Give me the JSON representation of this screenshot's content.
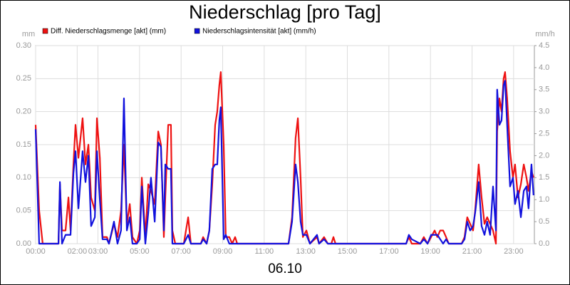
{
  "chart_data": {
    "type": "line",
    "title": "Niederschlag [pro Tag]",
    "xlabel": "06.10",
    "ylabel": "mm",
    "y2label": "mm/h",
    "grid": true,
    "legend": "top-left",
    "xlim": [
      0,
      24
    ],
    "xticks": [
      {
        "value": 0,
        "label": "00:00"
      },
      {
        "value": 2,
        "label": "02:00"
      },
      {
        "value": 3,
        "label": "03:00"
      },
      {
        "value": 5,
        "label": "05:00"
      },
      {
        "value": 7,
        "label": "07:00"
      },
      {
        "value": 9,
        "label": "09:00"
      },
      {
        "value": 11,
        "label": "11:00"
      },
      {
        "value": 13,
        "label": "13:00"
      },
      {
        "value": 15,
        "label": "15:00"
      },
      {
        "value": 17,
        "label": "17:00"
      },
      {
        "value": 19,
        "label": "19:00"
      },
      {
        "value": 21,
        "label": "21:00"
      },
      {
        "value": 23,
        "label": "23:00"
      }
    ],
    "ylim": [
      0,
      0.3
    ],
    "yticks": [
      {
        "value": 0,
        "label": "0.00"
      },
      {
        "value": 0.05,
        "label": "0.05"
      },
      {
        "value": 0.1,
        "label": "0.10"
      },
      {
        "value": 0.15,
        "label": "0.15"
      },
      {
        "value": 0.2,
        "label": "0.20"
      },
      {
        "value": 0.25,
        "label": "0.25"
      },
      {
        "value": 0.3,
        "label": "0.30"
      }
    ],
    "y2lim": [
      0,
      4.5
    ],
    "y2ticks": [
      {
        "value": 0,
        "label": "0.0"
      },
      {
        "value": 0.5,
        "label": "0.5"
      },
      {
        "value": 1,
        "label": "1.0"
      },
      {
        "value": 1.5,
        "label": "1.5"
      },
      {
        "value": 2,
        "label": "2.0"
      },
      {
        "value": 2.5,
        "label": "2.5"
      },
      {
        "value": 3,
        "label": "3.0"
      },
      {
        "value": 3.5,
        "label": "3.5"
      },
      {
        "value": 4,
        "label": "4.0"
      },
      {
        "value": 4.5,
        "label": "4.5"
      }
    ],
    "x": [
      0,
      0.17,
      0.34,
      1.1,
      1.17,
      1.27,
      1.44,
      1.58,
      1.68,
      1.82,
      1.92,
      2.06,
      2.26,
      2.4,
      2.54,
      2.67,
      2.85,
      2.95,
      3.09,
      3.22,
      3.43,
      3.53,
      3.77,
      3.94,
      4.11,
      4.25,
      4.39,
      4.53,
      4.66,
      4.87,
      5.01,
      5.11,
      5.28,
      5.42,
      5.55,
      5.73,
      5.9,
      6.03,
      6.17,
      6.24,
      6.38,
      6.51,
      6.58,
      6.72,
      7.13,
      7.34,
      7.47,
      7.95,
      8.06,
      8.23,
      8.36,
      8.5,
      8.64,
      8.74,
      8.84,
      8.91,
      9.05,
      9.15,
      9.32,
      9.46,
      9.6,
      9.7,
      12.17,
      12.34,
      12.51,
      12.62,
      12.75,
      12.86,
      13.03,
      13.2,
      13.54,
      13.64,
      13.88,
      14.06,
      14.23,
      14.33,
      14.43,
      17.83,
      17.96,
      18.1,
      18.51,
      18.68,
      18.86,
      19.03,
      19.2,
      19.33,
      19.47,
      19.61,
      19.75,
      19.88,
      20.5,
      20.64,
      20.77,
      20.91,
      21.05,
      21.15,
      21.32,
      21.46,
      21.6,
      21.73,
      21.87,
      22.01,
      22.15,
      22.21,
      22.32,
      22.42,
      22.52,
      22.59,
      22.69,
      22.83,
      22.97,
      23.07,
      23.21,
      23.35,
      23.49,
      23.62,
      23.72,
      23.86,
      23.96
    ],
    "series": [
      {
        "name": "Diff. Niederschlagsmenge [akt] (mm)",
        "color": "#ee1111",
        "axis": "y",
        "values": [
          0.18,
          0.05,
          0,
          0,
          0.09,
          0.02,
          0.02,
          0.07,
          0.02,
          0.12,
          0.18,
          0.13,
          0.19,
          0.12,
          0.15,
          0.07,
          0.05,
          0.19,
          0.13,
          0.01,
          0.01,
          0,
          0.03,
          0.01,
          0.05,
          0.15,
          0.03,
          0.06,
          0.01,
          0,
          0.02,
          0.1,
          0.01,
          0.09,
          0.08,
          0.06,
          0.17,
          0.15,
          0.01,
          0.07,
          0.18,
          0.18,
          0.02,
          0,
          0,
          0.04,
          0,
          0,
          0.01,
          0,
          0.02,
          0.09,
          0.18,
          0.2,
          0.24,
          0.26,
          0.15,
          0.01,
          0.01,
          0,
          0.01,
          0,
          0,
          0.04,
          0.16,
          0.19,
          0.1,
          0.01,
          0.02,
          0,
          0.01,
          0,
          0.01,
          0,
          0,
          0.01,
          0,
          0,
          0.01,
          0,
          0,
          0.01,
          0,
          0.01,
          0.02,
          0.01,
          0.02,
          0.02,
          0.01,
          0,
          0,
          0.01,
          0.04,
          0.03,
          0.02,
          0.05,
          0.12,
          0.07,
          0.03,
          0.04,
          0.03,
          0.02,
          0,
          0.17,
          0.22,
          0.2,
          0.25,
          0.26,
          0.22,
          0.14,
          0.1,
          0.12,
          0.07,
          0.09,
          0.12,
          0.1,
          0.08,
          0.11,
          0.1
        ]
      },
      {
        "name": "Niederschlagsintensität [akt] (mm/h)",
        "color": "#1111dd",
        "axis": "y2",
        "values": [
          2.6,
          0,
          0,
          0,
          1.4,
          0,
          0.2,
          0.2,
          0.2,
          1.6,
          2.1,
          0.8,
          2.1,
          1.4,
          2.0,
          0.4,
          0.6,
          2.1,
          1.0,
          0.1,
          0.1,
          0,
          0.5,
          0,
          0.3,
          3.3,
          0.3,
          0.6,
          0,
          0,
          0.1,
          1.3,
          0,
          0.7,
          1.5,
          0.5,
          2.3,
          2.2,
          0.3,
          1.8,
          1.7,
          1.7,
          0,
          0,
          0,
          0.2,
          0,
          0,
          0.1,
          0,
          0.3,
          1.7,
          1.8,
          1.8,
          2.8,
          3.1,
          0.1,
          0.2,
          0,
          0,
          0,
          0,
          0,
          0.5,
          1.8,
          1.4,
          0.5,
          0.2,
          0.2,
          0,
          0.2,
          0,
          0.1,
          0,
          0,
          0,
          0,
          0,
          0.2,
          0.1,
          0,
          0.1,
          0,
          0.2,
          0.2,
          0.2,
          0.1,
          0,
          0.1,
          0,
          0,
          0.1,
          0.5,
          0.3,
          0.4,
          0.7,
          1.4,
          0.4,
          0.2,
          0.5,
          0.2,
          1.3,
          0.3,
          3.5,
          2.7,
          2.8,
          3.6,
          3.7,
          2.7,
          1.3,
          1.5,
          0.9,
          1.2,
          0.6,
          1.2,
          1.3,
          0.8,
          1.8,
          1.1
        ]
      }
    ]
  }
}
